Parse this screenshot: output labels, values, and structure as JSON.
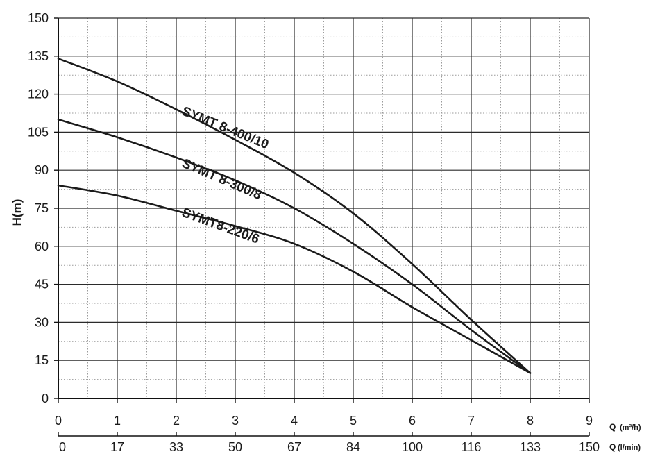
{
  "chart_data": {
    "type": "line",
    "ylabel": "H(m)",
    "ylim": [
      0,
      150
    ],
    "yticks": [
      "0",
      "15",
      "30",
      "45",
      "60",
      "75",
      "90",
      "105",
      "120",
      "135",
      "150"
    ],
    "xlim": [
      0,
      9
    ],
    "xticks": [
      "0",
      "1",
      "2",
      "3",
      "4",
      "5",
      "6",
      "7",
      "8",
      "9"
    ],
    "xlabel": "Q",
    "xunit": "(m³/h)",
    "x2ticks": [
      "0",
      "17",
      "33",
      "50",
      "67",
      "84",
      "100",
      "116",
      "133",
      "150"
    ],
    "x2label": "Q",
    "x2unit": "(l/min)",
    "grid": true,
    "series": [
      {
        "name": "SYMT 8-400/10",
        "x": [
          0,
          1,
          2,
          3,
          4,
          5,
          6,
          7,
          8
        ],
        "y": [
          134,
          125,
          114,
          102,
          89,
          73,
          53,
          31,
          10
        ]
      },
      {
        "name": "SYMT 8-300/8",
        "x": [
          0,
          1,
          2,
          3,
          4,
          5,
          6,
          7,
          8
        ],
        "y": [
          110,
          103,
          95,
          86,
          75,
          61,
          45,
          27,
          10
        ]
      },
      {
        "name": "SYMT8-220/6",
        "x": [
          0,
          1,
          2,
          3,
          4,
          5,
          6,
          7,
          8
        ],
        "y": [
          84,
          80,
          74,
          68,
          61,
          50,
          36,
          23,
          10
        ]
      }
    ]
  }
}
